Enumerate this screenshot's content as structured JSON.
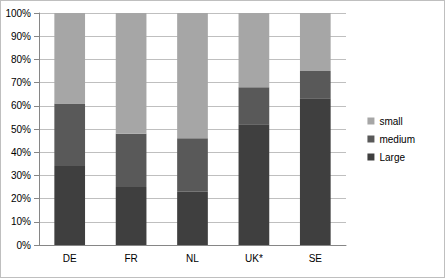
{
  "chart_data": {
    "type": "bar",
    "stacked": true,
    "grid": true,
    "legend": "right",
    "categories": [
      "DE",
      "FR",
      "NL",
      "UK*",
      "SE"
    ],
    "series": [
      {
        "name": "Large",
        "color": "#3f3f3f",
        "values": [
          34,
          25,
          23,
          52,
          63
        ]
      },
      {
        "name": "medium",
        "color": "#595959",
        "values": [
          27,
          23,
          23,
          16,
          12
        ]
      },
      {
        "name": "small",
        "color": "#a6a6a6",
        "values": [
          39,
          52,
          54,
          32,
          25
        ]
      }
    ],
    "ylim": [
      0,
      100
    ],
    "yticks": [
      {
        "value": 0,
        "label": "0%"
      },
      {
        "value": 10,
        "label": "10%"
      },
      {
        "value": 20,
        "label": "20%"
      },
      {
        "value": 30,
        "label": "30%"
      },
      {
        "value": 40,
        "label": "40%"
      },
      {
        "value": 50,
        "label": "50%"
      },
      {
        "value": 60,
        "label": "60%"
      },
      {
        "value": 70,
        "label": "70%"
      },
      {
        "value": 80,
        "label": "80%"
      },
      {
        "value": 90,
        "label": "90%"
      },
      {
        "value": 100,
        "label": "100%"
      }
    ]
  }
}
